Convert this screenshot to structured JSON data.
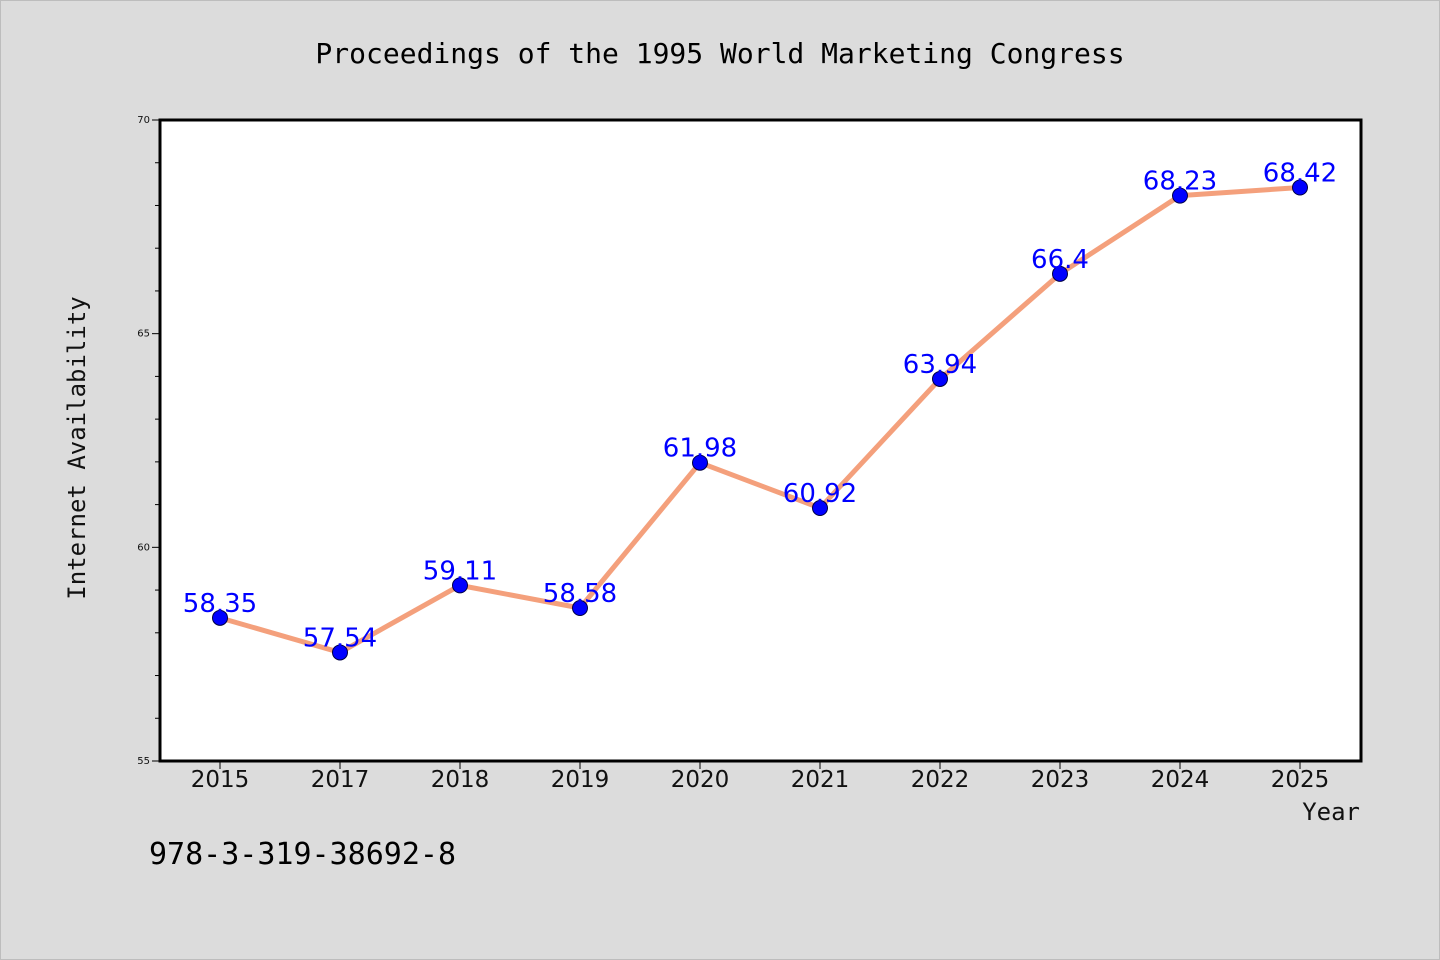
{
  "chart_data": {
    "type": "line",
    "title": "Proceedings of the 1995 World Marketing Congress",
    "xlabel": "Year",
    "ylabel": "Internet Availability",
    "categories": [
      "2015",
      "2017",
      "2018",
      "2019",
      "2020",
      "2021",
      "2022",
      "2023",
      "2024",
      "2025"
    ],
    "values": [
      58.35,
      57.54,
      59.11,
      58.58,
      61.98,
      60.92,
      63.94,
      66.4,
      68.23,
      68.42
    ],
    "data_labels": [
      "58.35",
      "57.54",
      "59.11",
      "58.58",
      "61.98",
      "60.92",
      "63.94",
      "66.4",
      "68.23",
      "68.42"
    ],
    "ylim": [
      55,
      70
    ],
    "yticks": [
      "55",
      "60",
      "65",
      "70"
    ],
    "grid": false,
    "line_color": "#f4a07c",
    "marker_color": "#0000ff",
    "label_color": "#0000ff"
  },
  "footer": {
    "isbn": "978-3-319-38692-8"
  }
}
